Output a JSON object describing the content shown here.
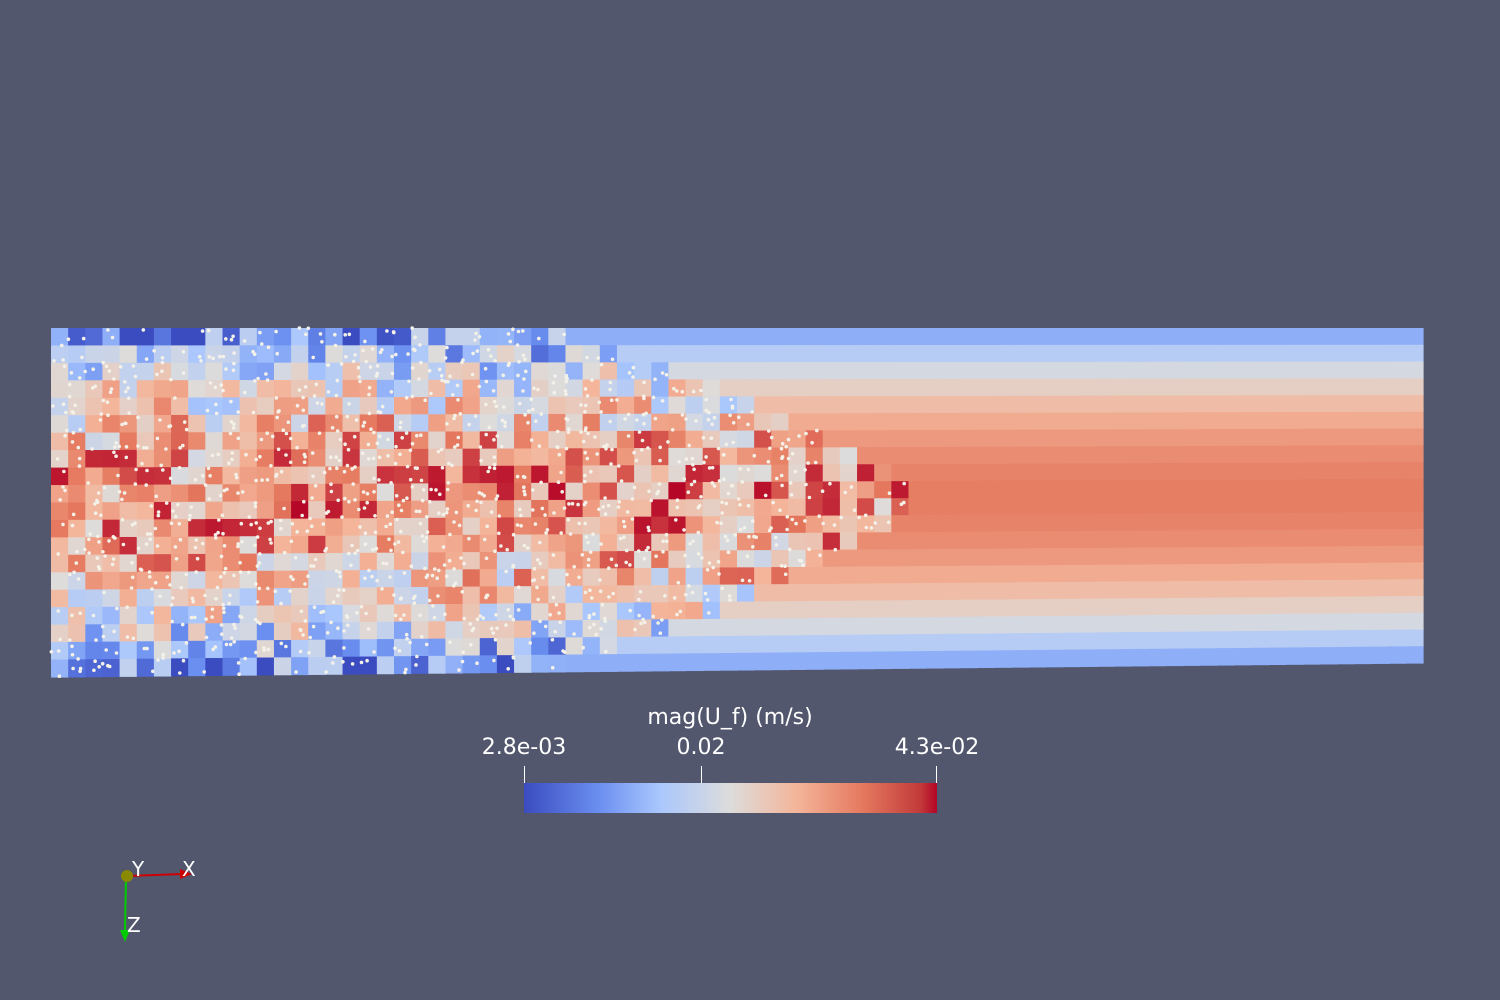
{
  "colorbar": {
    "title": "mag(U_f) (m/s)",
    "min_label": "2.8e-03",
    "mid_label": "0.02",
    "max_label": "4.3e-02",
    "min_value": 0.0028,
    "max_value": 0.043,
    "colormap": [
      "#3b4cc0",
      "#6a8ef0",
      "#aac7fd",
      "#dddcdb",
      "#f4b59a",
      "#e5795f",
      "#b40426"
    ]
  },
  "orientation_axes": {
    "x_label": "X",
    "y_label": "Y",
    "z_label": "Z",
    "x_color": "#cc0000",
    "y_color": "#8a8a00",
    "z_color": "#00cc00"
  },
  "colors": {
    "background": "#52576e"
  }
}
